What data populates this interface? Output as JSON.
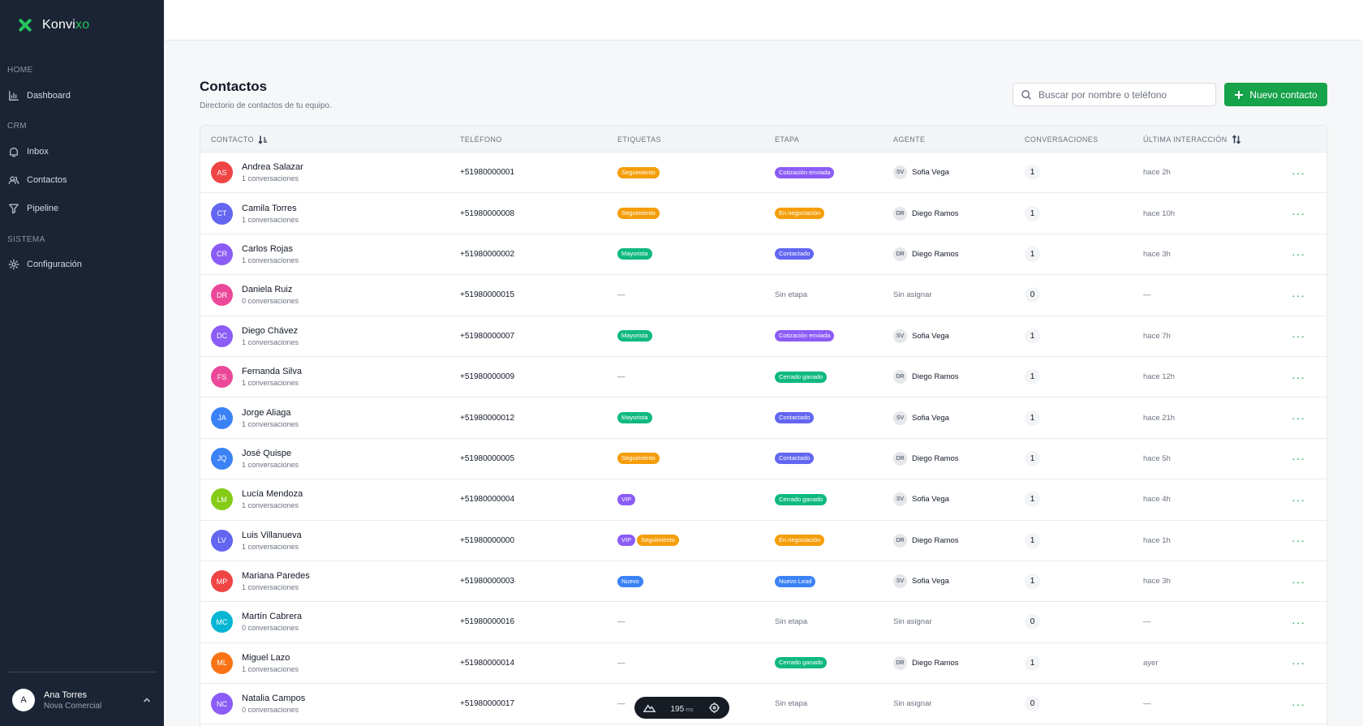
{
  "brand": {
    "name_main": "Konvi",
    "name_accent": "xo"
  },
  "sidebar": {
    "sections": [
      {
        "label": "HOME",
        "items": [
          {
            "label": "Dashboard",
            "icon": "bar-chart-icon"
          }
        ]
      },
      {
        "label": "CRM",
        "items": [
          {
            "label": "Inbox",
            "icon": "inbox-icon"
          },
          {
            "label": "Contactos",
            "icon": "users-icon"
          },
          {
            "label": "Pipeline",
            "icon": "filter-icon"
          }
        ]
      },
      {
        "label": "SISTEMA",
        "items": [
          {
            "label": "Configuración",
            "icon": "gear-icon"
          }
        ]
      }
    ]
  },
  "user": {
    "initial": "A",
    "name": "Ana Torres",
    "org": "Nova Comercial"
  },
  "header": {
    "title": "Contactos",
    "subtitle": "Directorio de contactos de tu equipo."
  },
  "search": {
    "placeholder": "Buscar por nombre o teléfono",
    "value": ""
  },
  "new_button": {
    "label": "Nuevo contacto"
  },
  "table": {
    "columns": {
      "contact": "CONTACTO",
      "phone": "TELÉFONO",
      "tags": "ETIQUETAS",
      "stage": "ETAPA",
      "agent": "AGENTE",
      "conversations": "CONVERSACIONES",
      "last": "ÚLTIMA INTERACCIÓN"
    },
    "rows": [
      {
        "initials": "AS",
        "color": "#ef4444",
        "name": "Andrea Salazar",
        "sub": "1 conversaciones",
        "phone": "+51980000001",
        "tags": [
          {
            "label": "Seguimiento",
            "color": "#f59e0b"
          }
        ],
        "stage": {
          "label": "Cotización enviada",
          "color": "#8b5cf6"
        },
        "agent": {
          "initials": "SV",
          "name": "Sofia Vega"
        },
        "conversations": "1",
        "last": "hace 2h"
      },
      {
        "initials": "CT",
        "color": "#6366f1",
        "name": "Camila Torres",
        "sub": "1 conversaciones",
        "phone": "+51980000008",
        "tags": [
          {
            "label": "Seguimiento",
            "color": "#f59e0b"
          }
        ],
        "stage": {
          "label": "En negociación",
          "color": "#f59e0b"
        },
        "agent": {
          "initials": "DR",
          "name": "Diego Ramos"
        },
        "conversations": "1",
        "last": "hace 10h"
      },
      {
        "initials": "CR",
        "color": "#8b5cf6",
        "name": "Carlos Rojas",
        "sub": "1 conversaciones",
        "phone": "+51980000002",
        "tags": [
          {
            "label": "Mayorista",
            "color": "#10b981"
          }
        ],
        "stage": {
          "label": "Contactado",
          "color": "#6366f1"
        },
        "agent": {
          "initials": "DR",
          "name": "Diego Ramos"
        },
        "conversations": "1",
        "last": "hace 3h"
      },
      {
        "initials": "DR",
        "color": "#ec4899",
        "name": "Daniela Ruiz",
        "sub": "0 conversaciones",
        "phone": "+51980000015",
        "tags": [],
        "empty_tags": "—",
        "stage": {
          "label": "Sin etapa",
          "color": ""
        },
        "agent": {
          "initials": "",
          "name": "Sin asignar"
        },
        "conversations": "0",
        "last": "—"
      },
      {
        "initials": "DC",
        "color": "#8b5cf6",
        "name": "Diego Chávez",
        "sub": "1 conversaciones",
        "phone": "+51980000007",
        "tags": [
          {
            "label": "Mayorista",
            "color": "#10b981"
          }
        ],
        "stage": {
          "label": "Cotización enviada",
          "color": "#8b5cf6"
        },
        "agent": {
          "initials": "SV",
          "name": "Sofia Vega"
        },
        "conversations": "1",
        "last": "hace 7h"
      },
      {
        "initials": "FS",
        "color": "#ec4899",
        "name": "Fernanda Silva",
        "sub": "1 conversaciones",
        "phone": "+51980000009",
        "tags": [],
        "empty_tags": "—",
        "stage": {
          "label": "Cerrado ganado",
          "color": "#10b981"
        },
        "agent": {
          "initials": "DR",
          "name": "Diego Ramos"
        },
        "conversations": "1",
        "last": "hace 12h"
      },
      {
        "initials": "JA",
        "color": "#3b82f6",
        "name": "Jorge Aliaga",
        "sub": "1 conversaciones",
        "phone": "+51980000012",
        "tags": [
          {
            "label": "Mayorista",
            "color": "#10b981"
          }
        ],
        "stage": {
          "label": "Contactado",
          "color": "#6366f1"
        },
        "agent": {
          "initials": "SV",
          "name": "Sofia Vega"
        },
        "conversations": "1",
        "last": "hace 21h"
      },
      {
        "initials": "JQ",
        "color": "#3b82f6",
        "name": "José Quispe",
        "sub": "1 conversaciones",
        "phone": "+51980000005",
        "tags": [
          {
            "label": "Seguimiento",
            "color": "#f59e0b"
          }
        ],
        "stage": {
          "label": "Contactado",
          "color": "#6366f1"
        },
        "agent": {
          "initials": "DR",
          "name": "Diego Ramos"
        },
        "conversations": "1",
        "last": "hace 5h"
      },
      {
        "initials": "LM",
        "color": "#84cc16",
        "name": "Lucía Mendoza",
        "sub": "1 conversaciones",
        "phone": "+51980000004",
        "tags": [
          {
            "label": "VIP",
            "color": "#8b5cf6"
          }
        ],
        "stage": {
          "label": "Cerrado ganado",
          "color": "#10b981"
        },
        "agent": {
          "initials": "SV",
          "name": "Sofia Vega"
        },
        "conversations": "1",
        "last": "hace 4h"
      },
      {
        "initials": "LV",
        "color": "#6366f1",
        "name": "Luis Villanueva",
        "sub": "1 conversaciones",
        "phone": "+51980000000",
        "tags": [
          {
            "label": "VIP",
            "color": "#8b5cf6"
          },
          {
            "label": "Seguimiento",
            "color": "#f59e0b"
          }
        ],
        "stage": {
          "label": "En negociación",
          "color": "#f59e0b"
        },
        "agent": {
          "initials": "DR",
          "name": "Diego Ramos"
        },
        "conversations": "1",
        "last": "hace 1h"
      },
      {
        "initials": "MP",
        "color": "#ef4444",
        "name": "Mariana Paredes",
        "sub": "1 conversaciones",
        "phone": "+51980000003",
        "tags": [
          {
            "label": "Nuevo",
            "color": "#3b82f6"
          }
        ],
        "stage": {
          "label": "Nuevo Lead",
          "color": "#3b82f6"
        },
        "agent": {
          "initials": "SV",
          "name": "Sofia Vega"
        },
        "conversations": "1",
        "last": "hace 3h"
      },
      {
        "initials": "MC",
        "color": "#06b6d4",
        "name": "Martín Cabrera",
        "sub": "0 conversaciones",
        "phone": "+51980000016",
        "tags": [],
        "empty_tags": "—",
        "stage": {
          "label": "Sin etapa",
          "color": ""
        },
        "agent": {
          "initials": "",
          "name": "Sin asignar"
        },
        "conversations": "0",
        "last": "—"
      },
      {
        "initials": "ML",
        "color": "#f97316",
        "name": "Miguel Lazo",
        "sub": "1 conversaciones",
        "phone": "+51980000014",
        "tags": [],
        "empty_tags": "—",
        "stage": {
          "label": "Cerrado ganado",
          "color": "#10b981"
        },
        "agent": {
          "initials": "DR",
          "name": "Diego Ramos"
        },
        "conversations": "1",
        "last": "ayer"
      },
      {
        "initials": "NC",
        "color": "#8b5cf6",
        "name": "Natalia Campos",
        "sub": "0 conversaciones",
        "phone": "+51980000017",
        "tags": [],
        "empty_tags": "—",
        "stage": {
          "label": "Sin etapa",
          "color": ""
        },
        "agent": {
          "initials": "",
          "name": "Sin asignar"
        },
        "conversations": "0",
        "last": "—"
      }
    ],
    "row_menu_icon": "more-horizontal-icon"
  },
  "floating_pill": {
    "value": "195",
    "unit": "ms"
  },
  "colors": {
    "accent": "#16a34a",
    "sidebar_bg": "#1b2434"
  }
}
